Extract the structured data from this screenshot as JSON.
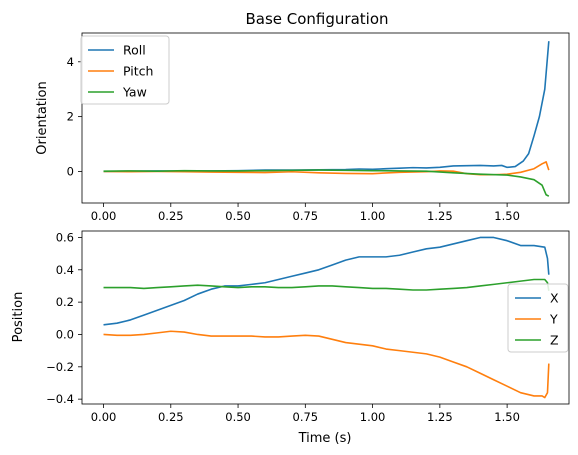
{
  "chart_data": [
    {
      "type": "line",
      "title": "Base Configuration",
      "xlabel": "",
      "ylabel": "Orientation",
      "xlim": [
        -0.08,
        1.73
      ],
      "ylim": [
        -1.15,
        5.05
      ],
      "xticks": [
        0.0,
        0.25,
        0.5,
        0.75,
        1.0,
        1.25,
        1.5
      ],
      "xtick_labels": [
        "0.00",
        "0.25",
        "0.50",
        "0.75",
        "1.00",
        "1.25",
        "1.50"
      ],
      "yticks": [
        0,
        2,
        4
      ],
      "ytick_labels": [
        "0",
        "2",
        "4"
      ],
      "grid": false,
      "legend": "upper-left",
      "series": [
        {
          "name": "Roll",
          "color": "#1f77b4",
          "points": [
            [
              0.0,
              0.0
            ],
            [
              0.1,
              0.01
            ],
            [
              0.2,
              0.02
            ],
            [
              0.3,
              0.01
            ],
            [
              0.4,
              0.02
            ],
            [
              0.5,
              0.03
            ],
            [
              0.6,
              0.05
            ],
            [
              0.7,
              0.05
            ],
            [
              0.8,
              0.06
            ],
            [
              0.9,
              0.07
            ],
            [
              0.95,
              0.09
            ],
            [
              1.0,
              0.08
            ],
            [
              1.05,
              0.1
            ],
            [
              1.1,
              0.12
            ],
            [
              1.15,
              0.14
            ],
            [
              1.2,
              0.13
            ],
            [
              1.25,
              0.15
            ],
            [
              1.3,
              0.2
            ],
            [
              1.35,
              0.21
            ],
            [
              1.4,
              0.22
            ],
            [
              1.45,
              0.2
            ],
            [
              1.48,
              0.22
            ],
            [
              1.5,
              0.15
            ],
            [
              1.53,
              0.18
            ],
            [
              1.56,
              0.38
            ],
            [
              1.58,
              0.65
            ],
            [
              1.6,
              1.3
            ],
            [
              1.62,
              2.0
            ],
            [
              1.64,
              3.0
            ],
            [
              1.655,
              4.75
            ]
          ]
        },
        {
          "name": "Pitch",
          "color": "#ff7f0e",
          "points": [
            [
              0.0,
              0.0
            ],
            [
              0.1,
              -0.01
            ],
            [
              0.2,
              0.0
            ],
            [
              0.3,
              -0.01
            ],
            [
              0.4,
              -0.02
            ],
            [
              0.5,
              -0.03
            ],
            [
              0.6,
              -0.04
            ],
            [
              0.7,
              -0.01
            ],
            [
              0.8,
              -0.05
            ],
            [
              0.9,
              -0.07
            ],
            [
              1.0,
              -0.08
            ],
            [
              1.1,
              -0.03
            ],
            [
              1.2,
              -0.01
            ],
            [
              1.25,
              0.02
            ],
            [
              1.3,
              0.01
            ],
            [
              1.35,
              -0.08
            ],
            [
              1.4,
              -0.12
            ],
            [
              1.45,
              -0.12
            ],
            [
              1.5,
              -0.1
            ],
            [
              1.55,
              -0.03
            ],
            [
              1.6,
              0.1
            ],
            [
              1.63,
              0.28
            ],
            [
              1.645,
              0.35
            ],
            [
              1.655,
              0.05
            ]
          ]
        },
        {
          "name": "Yaw",
          "color": "#2ca02c",
          "points": [
            [
              0.0,
              0.01
            ],
            [
              0.1,
              0.02
            ],
            [
              0.2,
              0.01
            ],
            [
              0.3,
              0.03
            ],
            [
              0.4,
              0.02
            ],
            [
              0.5,
              0.02
            ],
            [
              0.6,
              0.03
            ],
            [
              0.7,
              0.04
            ],
            [
              0.8,
              0.05
            ],
            [
              0.9,
              0.04
            ],
            [
              1.0,
              0.03
            ],
            [
              1.1,
              0.02
            ],
            [
              1.2,
              0.01
            ],
            [
              1.3,
              -0.05
            ],
            [
              1.4,
              -0.1
            ],
            [
              1.5,
              -0.13
            ],
            [
              1.55,
              -0.2
            ],
            [
              1.6,
              -0.3
            ],
            [
              1.63,
              -0.5
            ],
            [
              1.645,
              -0.85
            ],
            [
              1.655,
              -0.9
            ]
          ]
        }
      ]
    },
    {
      "type": "line",
      "title": "",
      "xlabel": "Time (s)",
      "ylabel": "Position",
      "xlim": [
        -0.08,
        1.73
      ],
      "ylim": [
        -0.43,
        0.64
      ],
      "xticks": [
        0.0,
        0.25,
        0.5,
        0.75,
        1.0,
        1.25,
        1.5
      ],
      "xtick_labels": [
        "0.00",
        "0.25",
        "0.50",
        "0.75",
        "1.00",
        "1.25",
        "1.50"
      ],
      "yticks": [
        -0.4,
        -0.2,
        0.0,
        0.2,
        0.4,
        0.6
      ],
      "ytick_labels": [
        "−0.4",
        "−0.2",
        "0.0",
        "0.2",
        "0.4",
        "0.6"
      ],
      "grid": false,
      "legend": "center-right",
      "series": [
        {
          "name": "X",
          "color": "#1f77b4",
          "points": [
            [
              0.0,
              0.06
            ],
            [
              0.05,
              0.07
            ],
            [
              0.1,
              0.09
            ],
            [
              0.15,
              0.12
            ],
            [
              0.2,
              0.15
            ],
            [
              0.25,
              0.18
            ],
            [
              0.3,
              0.21
            ],
            [
              0.35,
              0.25
            ],
            [
              0.4,
              0.28
            ],
            [
              0.45,
              0.3
            ],
            [
              0.5,
              0.3
            ],
            [
              0.55,
              0.31
            ],
            [
              0.6,
              0.32
            ],
            [
              0.65,
              0.34
            ],
            [
              0.7,
              0.36
            ],
            [
              0.75,
              0.38
            ],
            [
              0.8,
              0.4
            ],
            [
              0.85,
              0.43
            ],
            [
              0.9,
              0.46
            ],
            [
              0.95,
              0.48
            ],
            [
              1.0,
              0.48
            ],
            [
              1.05,
              0.48
            ],
            [
              1.1,
              0.49
            ],
            [
              1.15,
              0.51
            ],
            [
              1.2,
              0.53
            ],
            [
              1.25,
              0.54
            ],
            [
              1.3,
              0.56
            ],
            [
              1.35,
              0.58
            ],
            [
              1.4,
              0.6
            ],
            [
              1.45,
              0.6
            ],
            [
              1.5,
              0.58
            ],
            [
              1.55,
              0.55
            ],
            [
              1.6,
              0.55
            ],
            [
              1.64,
              0.54
            ],
            [
              1.65,
              0.47
            ],
            [
              1.655,
              0.37
            ]
          ]
        },
        {
          "name": "Y",
          "color": "#ff7f0e",
          "points": [
            [
              0.0,
              0.0
            ],
            [
              0.05,
              -0.005
            ],
            [
              0.1,
              -0.005
            ],
            [
              0.15,
              0.0
            ],
            [
              0.2,
              0.01
            ],
            [
              0.25,
              0.02
            ],
            [
              0.3,
              0.015
            ],
            [
              0.35,
              0.0
            ],
            [
              0.4,
              -0.01
            ],
            [
              0.45,
              -0.01
            ],
            [
              0.5,
              -0.01
            ],
            [
              0.55,
              -0.01
            ],
            [
              0.6,
              -0.015
            ],
            [
              0.65,
              -0.015
            ],
            [
              0.7,
              -0.01
            ],
            [
              0.75,
              -0.005
            ],
            [
              0.8,
              -0.01
            ],
            [
              0.85,
              -0.03
            ],
            [
              0.9,
              -0.05
            ],
            [
              0.95,
              -0.06
            ],
            [
              1.0,
              -0.07
            ],
            [
              1.05,
              -0.09
            ],
            [
              1.1,
              -0.1
            ],
            [
              1.15,
              -0.11
            ],
            [
              1.2,
              -0.12
            ],
            [
              1.25,
              -0.14
            ],
            [
              1.3,
              -0.17
            ],
            [
              1.35,
              -0.2
            ],
            [
              1.4,
              -0.24
            ],
            [
              1.45,
              -0.28
            ],
            [
              1.5,
              -0.32
            ],
            [
              1.55,
              -0.36
            ],
            [
              1.6,
              -0.38
            ],
            [
              1.63,
              -0.38
            ],
            [
              1.64,
              -0.39
            ],
            [
              1.65,
              -0.36
            ],
            [
              1.655,
              -0.18
            ]
          ]
        },
        {
          "name": "Z",
          "color": "#2ca02c",
          "points": [
            [
              0.0,
              0.29
            ],
            [
              0.05,
              0.29
            ],
            [
              0.1,
              0.29
            ],
            [
              0.15,
              0.285
            ],
            [
              0.2,
              0.29
            ],
            [
              0.25,
              0.295
            ],
            [
              0.3,
              0.3
            ],
            [
              0.35,
              0.305
            ],
            [
              0.4,
              0.3
            ],
            [
              0.45,
              0.295
            ],
            [
              0.5,
              0.29
            ],
            [
              0.55,
              0.295
            ],
            [
              0.6,
              0.295
            ],
            [
              0.65,
              0.29
            ],
            [
              0.7,
              0.29
            ],
            [
              0.75,
              0.295
            ],
            [
              0.8,
              0.3
            ],
            [
              0.85,
              0.3
            ],
            [
              0.9,
              0.295
            ],
            [
              0.95,
              0.29
            ],
            [
              1.0,
              0.285
            ],
            [
              1.05,
              0.285
            ],
            [
              1.1,
              0.28
            ],
            [
              1.15,
              0.275
            ],
            [
              1.2,
              0.275
            ],
            [
              1.25,
              0.28
            ],
            [
              1.3,
              0.285
            ],
            [
              1.35,
              0.29
            ],
            [
              1.4,
              0.3
            ],
            [
              1.45,
              0.31
            ],
            [
              1.5,
              0.32
            ],
            [
              1.55,
              0.33
            ],
            [
              1.6,
              0.34
            ],
            [
              1.64,
              0.34
            ],
            [
              1.65,
              0.32
            ],
            [
              1.655,
              0.27
            ]
          ]
        }
      ]
    }
  ]
}
